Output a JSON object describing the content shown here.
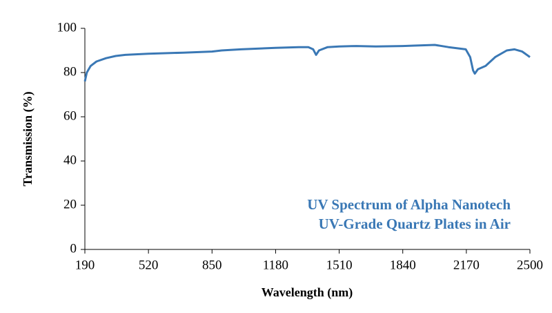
{
  "chart_data": {
    "type": "line",
    "xlabel": "Wavelength (nm)",
    "ylabel": "Transmission (%)",
    "annotation": [
      "UV Spectrum of Alpha Nanotech",
      "UV-Grade Quartz Plates in Air"
    ],
    "x": [
      190,
      200,
      220,
      250,
      300,
      350,
      400,
      520,
      700,
      850,
      900,
      1000,
      1180,
      1300,
      1350,
      1375,
      1390,
      1405,
      1450,
      1510,
      1600,
      1700,
      1840,
      1900,
      2006,
      2077,
      2167,
      2190,
      2205,
      2214,
      2230,
      2270,
      2320,
      2380,
      2420,
      2460,
      2500
    ],
    "values": [
      76,
      80,
      83,
      85,
      86.5,
      87.5,
      88,
      88.5,
      89,
      89.5,
      90,
      90.5,
      91.2,
      91.5,
      91.5,
      90.5,
      88,
      90,
      91.5,
      91.8,
      92,
      91.8,
      92,
      92.2,
      92.5,
      91.5,
      90.5,
      87,
      81,
      79.5,
      81.5,
      83,
      87,
      90,
      90.5,
      89.5,
      87
    ],
    "color": "#3a78b5",
    "xlim": [
      190,
      2500
    ],
    "xticks": [
      190,
      520,
      850,
      1180,
      1510,
      1840,
      2170,
      2500
    ],
    "ylim": [
      0,
      100
    ],
    "yticks": [
      0,
      20,
      40,
      60,
      80,
      100
    ]
  }
}
